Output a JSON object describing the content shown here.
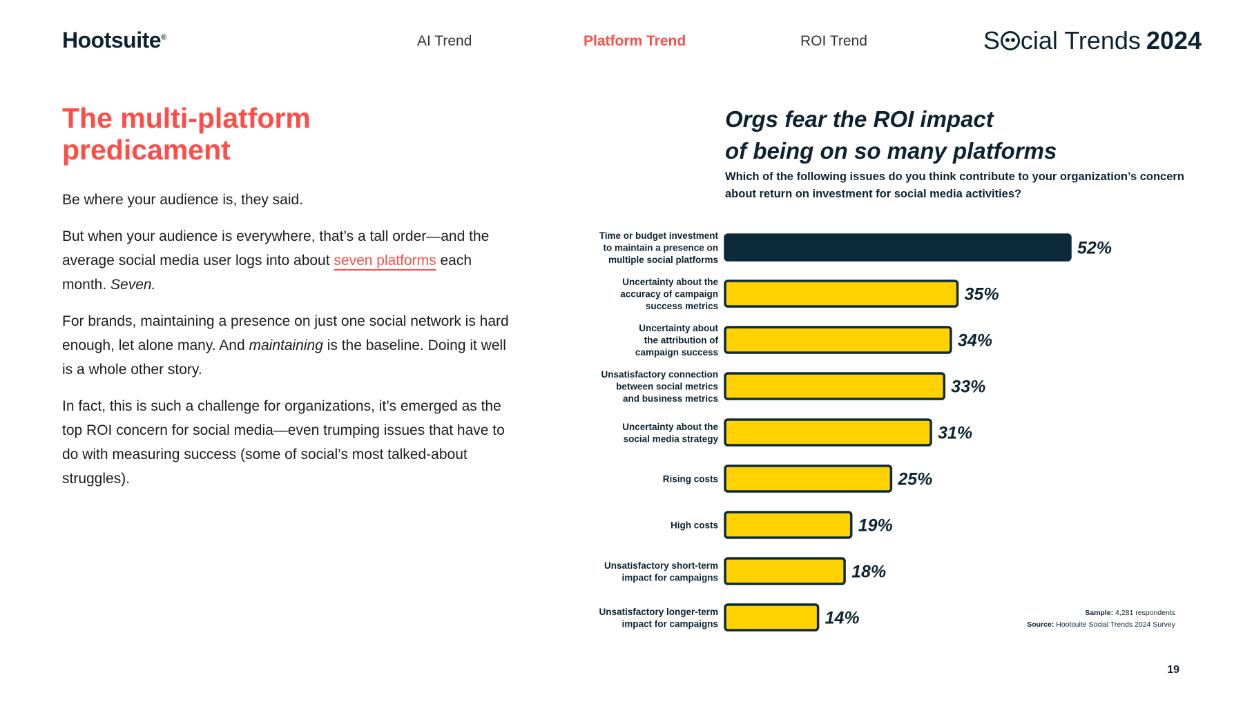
{
  "header": {
    "logo": "Hootsuite",
    "logo_mark": "®",
    "nav": [
      {
        "label": "AI Trend"
      },
      {
        "label": "Platform Trend"
      },
      {
        "label": "ROI Trend"
      }
    ],
    "brand_left": "S",
    "brand_right": "cial Trends",
    "brand_year": "2024"
  },
  "article": {
    "headline_line1": "The multi-platform",
    "headline_line2": "predicament",
    "p1": "Be where your audience is, they said.",
    "p2_a": "But when your audience is everywhere, that’s a tall order—and the average social media user logs into about ",
    "p2_link": "seven platforms",
    "p2_b": " each month. ",
    "p2_italic": "Seven.",
    "p3_a": "For brands, maintaining a presence on just one social network is hard enough, let alone many. And ",
    "p3_italic": "maintaining",
    "p3_b": " is the baseline. Doing it well is a whole other story.",
    "p4": "In fact, this is such a challenge for organizations, it’s emerged as the top ROI concern for social media—even trumping issues that have to do with measuring success (some of social’s most talked-about struggles)."
  },
  "chart_data": {
    "type": "bar",
    "orientation": "horizontal",
    "title_line1": "Orgs fear the ROI impact",
    "title_line2": "of being on so many platforms",
    "subtitle": "Which of the following issues do you think contribute to your organization’s concern about return on investment for social media activities?",
    "categories": [
      [
        "Time or budget investment",
        "to maintain a presence on",
        "multiple social platforms"
      ],
      [
        "Uncertainty about the",
        "accuracy of campaign",
        "success metrics"
      ],
      [
        "Uncertainty about",
        "the attribution of",
        "campaign success"
      ],
      [
        "Unsatisfactory connection",
        "between social metrics",
        "and business metrics"
      ],
      [
        "Uncertainty about the",
        "social media strategy"
      ],
      [
        "Rising costs"
      ],
      [
        "High costs"
      ],
      [
        "Unsatisfactory short-term",
        "impact for campaigns"
      ],
      [
        "Unsatisfactory longer-term",
        "impact for campaigns"
      ]
    ],
    "values": [
      52,
      35,
      34,
      33,
      31,
      25,
      19,
      18,
      14
    ],
    "value_suffix": "%",
    "xlim": [
      0,
      52
    ],
    "highlight_color": "#0d2a3a",
    "bar_color": "#ffd200",
    "outline_color": "#0d2a3a",
    "grid": false,
    "legend": "none"
  },
  "footer": {
    "sample_label": "Sample:",
    "sample_value": "4,281 respondents",
    "source_label": "Source:",
    "source_value": "Hootsuite Social Trends 2024 Survey",
    "page_number": "19"
  }
}
